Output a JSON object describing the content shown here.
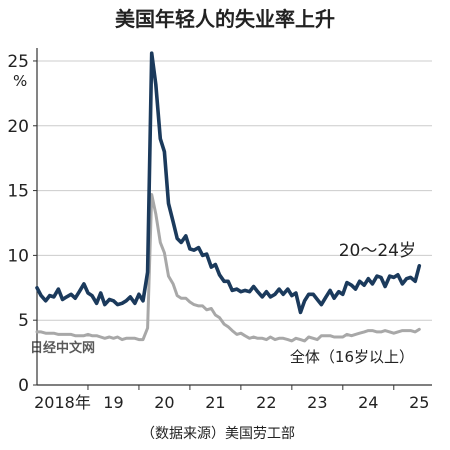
{
  "chart_data": {
    "type": "line",
    "title": "美国年轻人的失业率上升",
    "ylabel": "%",
    "source": "（数据来源）美国劳工部",
    "watermark": "日经中文网",
    "ylim": [
      0,
      26
    ],
    "yticks": [
      {
        "value": 0,
        "label": "0"
      },
      {
        "value": 5,
        "label": "5"
      },
      {
        "value": 10,
        "label": "10"
      },
      {
        "value": 15,
        "label": "15"
      },
      {
        "value": 20,
        "label": "20"
      },
      {
        "value": 25,
        "label": "25"
      }
    ],
    "xlim": [
      2018.0,
      2025.75
    ],
    "xticks": [
      {
        "value": 2018.5,
        "label": "2018年"
      },
      {
        "value": 2019.5,
        "label": "19"
      },
      {
        "value": 2020.5,
        "label": "20"
      },
      {
        "value": 2021.5,
        "label": "21"
      },
      {
        "value": 2022.5,
        "label": "22"
      },
      {
        "value": 2023.5,
        "label": "23"
      },
      {
        "value": 2024.5,
        "label": "24"
      },
      {
        "value": 2025.5,
        "label": "25"
      }
    ],
    "grid": "horizontal",
    "series": [
      {
        "name": "20～24岁",
        "color": "#1b3a5c",
        "points": [
          [
            2018.0,
            7.5
          ],
          [
            2018.08,
            6.9
          ],
          [
            2018.17,
            6.5
          ],
          [
            2018.25,
            6.9
          ],
          [
            2018.33,
            6.8
          ],
          [
            2018.42,
            7.4
          ],
          [
            2018.5,
            6.6
          ],
          [
            2018.58,
            6.8
          ],
          [
            2018.67,
            7.0
          ],
          [
            2018.75,
            6.7
          ],
          [
            2018.83,
            7.2
          ],
          [
            2018.92,
            7.8
          ],
          [
            2019.0,
            7.1
          ],
          [
            2019.08,
            6.9
          ],
          [
            2019.17,
            6.3
          ],
          [
            2019.25,
            7.1
          ],
          [
            2019.33,
            6.2
          ],
          [
            2019.42,
            6.6
          ],
          [
            2019.5,
            6.5
          ],
          [
            2019.58,
            6.2
          ],
          [
            2019.67,
            6.3
          ],
          [
            2019.75,
            6.5
          ],
          [
            2019.83,
            6.8
          ],
          [
            2019.92,
            6.3
          ],
          [
            2020.0,
            7.0
          ],
          [
            2020.08,
            6.5
          ],
          [
            2020.17,
            8.7
          ],
          [
            2020.25,
            25.6
          ],
          [
            2020.33,
            23.2
          ],
          [
            2020.42,
            19.0
          ],
          [
            2020.5,
            18.0
          ],
          [
            2020.58,
            14.0
          ],
          [
            2020.67,
            12.6
          ],
          [
            2020.75,
            11.3
          ],
          [
            2020.83,
            11.0
          ],
          [
            2020.92,
            11.5
          ],
          [
            2021.0,
            10.5
          ],
          [
            2021.08,
            10.4
          ],
          [
            2021.17,
            10.6
          ],
          [
            2021.25,
            10.0
          ],
          [
            2021.33,
            10.1
          ],
          [
            2021.42,
            9.1
          ],
          [
            2021.5,
            9.3
          ],
          [
            2021.58,
            8.5
          ],
          [
            2021.67,
            8.0
          ],
          [
            2021.75,
            8.0
          ],
          [
            2021.83,
            7.3
          ],
          [
            2021.92,
            7.4
          ],
          [
            2022.0,
            7.2
          ],
          [
            2022.08,
            7.3
          ],
          [
            2022.17,
            7.2
          ],
          [
            2022.25,
            7.6
          ],
          [
            2022.33,
            7.2
          ],
          [
            2022.42,
            6.8
          ],
          [
            2022.5,
            7.2
          ],
          [
            2022.58,
            6.8
          ],
          [
            2022.67,
            7.0
          ],
          [
            2022.75,
            7.4
          ],
          [
            2022.83,
            7.0
          ],
          [
            2022.92,
            7.4
          ],
          [
            2023.0,
            6.9
          ],
          [
            2023.08,
            7.1
          ],
          [
            2023.17,
            5.6
          ],
          [
            2023.25,
            6.5
          ],
          [
            2023.33,
            7.0
          ],
          [
            2023.42,
            7.0
          ],
          [
            2023.5,
            6.6
          ],
          [
            2023.58,
            6.2
          ],
          [
            2023.67,
            6.8
          ],
          [
            2023.75,
            7.3
          ],
          [
            2023.83,
            6.7
          ],
          [
            2023.92,
            7.2
          ],
          [
            2024.0,
            7.0
          ],
          [
            2024.08,
            7.9
          ],
          [
            2024.17,
            7.7
          ],
          [
            2024.25,
            7.4
          ],
          [
            2024.33,
            8.0
          ],
          [
            2024.42,
            7.7
          ],
          [
            2024.5,
            8.2
          ],
          [
            2024.58,
            7.8
          ],
          [
            2024.67,
            8.4
          ],
          [
            2024.75,
            8.3
          ],
          [
            2024.83,
            7.6
          ],
          [
            2024.92,
            8.4
          ],
          [
            2025.0,
            8.3
          ],
          [
            2025.08,
            8.5
          ],
          [
            2025.17,
            7.8
          ],
          [
            2025.25,
            8.2
          ],
          [
            2025.33,
            8.3
          ],
          [
            2025.42,
            8.0
          ],
          [
            2025.5,
            9.2
          ]
        ]
      },
      {
        "name": "全体（16岁以上）",
        "color": "#a8a8a8",
        "points": [
          [
            2018.0,
            4.1
          ],
          [
            2018.08,
            4.1
          ],
          [
            2018.17,
            4.0
          ],
          [
            2018.25,
            4.0
          ],
          [
            2018.33,
            4.0
          ],
          [
            2018.42,
            3.9
          ],
          [
            2018.5,
            3.9
          ],
          [
            2018.58,
            3.9
          ],
          [
            2018.67,
            3.9
          ],
          [
            2018.75,
            3.8
          ],
          [
            2018.83,
            3.8
          ],
          [
            2018.92,
            3.8
          ],
          [
            2019.0,
            3.9
          ],
          [
            2019.08,
            3.8
          ],
          [
            2019.17,
            3.8
          ],
          [
            2019.25,
            3.7
          ],
          [
            2019.33,
            3.6
          ],
          [
            2019.42,
            3.7
          ],
          [
            2019.5,
            3.6
          ],
          [
            2019.58,
            3.7
          ],
          [
            2019.67,
            3.5
          ],
          [
            2019.75,
            3.6
          ],
          [
            2019.83,
            3.6
          ],
          [
            2019.92,
            3.6
          ],
          [
            2020.0,
            3.5
          ],
          [
            2020.08,
            3.5
          ],
          [
            2020.17,
            4.4
          ],
          [
            2020.25,
            14.7
          ],
          [
            2020.33,
            13.2
          ],
          [
            2020.42,
            11.0
          ],
          [
            2020.5,
            10.2
          ],
          [
            2020.58,
            8.4
          ],
          [
            2020.67,
            7.8
          ],
          [
            2020.75,
            6.9
          ],
          [
            2020.83,
            6.7
          ],
          [
            2020.92,
            6.7
          ],
          [
            2021.0,
            6.4
          ],
          [
            2021.08,
            6.2
          ],
          [
            2021.17,
            6.1
          ],
          [
            2021.25,
            6.1
          ],
          [
            2021.33,
            5.8
          ],
          [
            2021.42,
            5.9
          ],
          [
            2021.5,
            5.4
          ],
          [
            2021.58,
            5.2
          ],
          [
            2021.67,
            4.7
          ],
          [
            2021.75,
            4.5
          ],
          [
            2021.83,
            4.2
          ],
          [
            2021.92,
            3.9
          ],
          [
            2022.0,
            4.0
          ],
          [
            2022.08,
            3.8
          ],
          [
            2022.17,
            3.6
          ],
          [
            2022.25,
            3.7
          ],
          [
            2022.33,
            3.6
          ],
          [
            2022.42,
            3.6
          ],
          [
            2022.5,
            3.5
          ],
          [
            2022.58,
            3.7
          ],
          [
            2022.67,
            3.5
          ],
          [
            2022.75,
            3.6
          ],
          [
            2022.83,
            3.6
          ],
          [
            2022.92,
            3.5
          ],
          [
            2023.0,
            3.4
          ],
          [
            2023.08,
            3.6
          ],
          [
            2023.17,
            3.5
          ],
          [
            2023.25,
            3.4
          ],
          [
            2023.33,
            3.7
          ],
          [
            2023.42,
            3.6
          ],
          [
            2023.5,
            3.5
          ],
          [
            2023.58,
            3.8
          ],
          [
            2023.67,
            3.8
          ],
          [
            2023.75,
            3.8
          ],
          [
            2023.83,
            3.7
          ],
          [
            2023.92,
            3.7
          ],
          [
            2024.0,
            3.7
          ],
          [
            2024.08,
            3.9
          ],
          [
            2024.17,
            3.8
          ],
          [
            2024.25,
            3.9
          ],
          [
            2024.33,
            4.0
          ],
          [
            2024.42,
            4.1
          ],
          [
            2024.5,
            4.2
          ],
          [
            2024.58,
            4.2
          ],
          [
            2024.67,
            4.1
          ],
          [
            2024.75,
            4.1
          ],
          [
            2024.83,
            4.2
          ],
          [
            2024.92,
            4.1
          ],
          [
            2025.0,
            4.0
          ],
          [
            2025.08,
            4.1
          ],
          [
            2025.17,
            4.2
          ],
          [
            2025.25,
            4.2
          ],
          [
            2025.33,
            4.2
          ],
          [
            2025.42,
            4.1
          ],
          [
            2025.5,
            4.3
          ]
        ]
      }
    ]
  }
}
